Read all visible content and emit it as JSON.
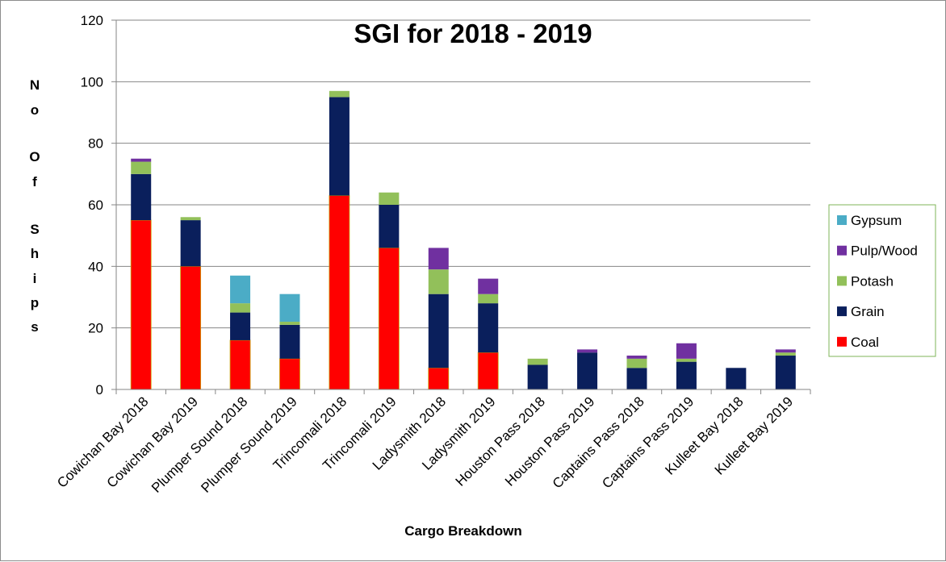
{
  "chart_data": {
    "type": "bar",
    "stacked": true,
    "title": "SGI for 2018 - 2019",
    "xlabel": "Cargo Breakdown",
    "ylabel_letters": [
      "N",
      "o",
      "O",
      "f",
      "S",
      "h",
      "i",
      "p",
      "s"
    ],
    "ylim": [
      0,
      120
    ],
    "yticks": [
      0,
      20,
      40,
      60,
      80,
      100,
      120
    ],
    "grid": true,
    "legend_position": "right",
    "categories": [
      "Cowichan Bay 2018",
      "Cowichan Bay 2019",
      "Plumper Sound 2018",
      "Plumper Sound 2019",
      "Trincomali 2018",
      "Trincomali 2019",
      "Ladysmith 2018",
      "Ladysmith 2019",
      "Houston Pass 2018",
      "Houston Pass 2019",
      "Captains Pass 2018",
      "Captains Pass 2019",
      "Kulleet Bay 2018",
      "Kulleet Bay 2019"
    ],
    "series": [
      {
        "name": "Coal",
        "color": "#ff0000",
        "values": [
          55,
          40,
          16,
          10,
          63,
          46,
          7,
          12,
          0,
          0,
          0,
          0,
          0,
          0
        ]
      },
      {
        "name": "Grain",
        "color": "#0a1f5c",
        "values": [
          15,
          15,
          9,
          11,
          32,
          14,
          24,
          16,
          8,
          12,
          7,
          9,
          7,
          11
        ]
      },
      {
        "name": "Potash",
        "color": "#92c05a",
        "values": [
          4,
          1,
          3,
          1,
          2,
          4,
          8,
          3,
          2,
          0,
          3,
          1,
          0,
          1
        ]
      },
      {
        "name": "Pulp/Wood",
        "color": "#7030a0",
        "values": [
          1,
          0,
          0,
          0,
          0,
          0,
          7,
          5,
          0,
          1,
          1,
          5,
          0,
          1
        ]
      },
      {
        "name": "Gypsum",
        "color": "#4bacc6",
        "values": [
          0,
          0,
          9,
          9,
          0,
          0,
          0,
          0,
          0,
          0,
          0,
          0,
          0,
          0
        ]
      }
    ],
    "legend_order": [
      "Gypsum",
      "Pulp/Wood",
      "Potash",
      "Grain",
      "Coal"
    ]
  }
}
